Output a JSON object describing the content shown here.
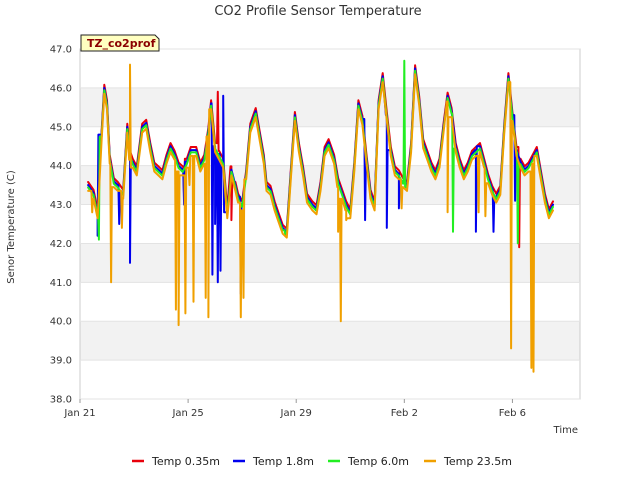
{
  "chart_data": {
    "type": "line",
    "title": "CO2 Profile Sensor Temperature",
    "badge": "TZ_co2prof",
    "xlabel": "Time",
    "ylabel": "Senor Temperature (C)",
    "ylim": [
      38.0,
      47.0
    ],
    "xlim": [
      0,
      18.5
    ],
    "y_ticks": [
      {
        "value": 38.0,
        "label": "38.0"
      },
      {
        "value": 39.0,
        "label": "39.0"
      },
      {
        "value": 40.0,
        "label": "40.0"
      },
      {
        "value": 41.0,
        "label": "41.0"
      },
      {
        "value": 42.0,
        "label": "42.0"
      },
      {
        "value": 43.0,
        "label": "43.0"
      },
      {
        "value": 44.0,
        "label": "44.0"
      },
      {
        "value": 45.0,
        "label": "45.0"
      },
      {
        "value": 46.0,
        "label": "46.0"
      },
      {
        "value": 47.0,
        "label": "47.0"
      }
    ],
    "x_ticks": [
      {
        "value": 0,
        "label": "Jan 21"
      },
      {
        "value": 4,
        "label": "Jan 25"
      },
      {
        "value": 8,
        "label": "Jan 29"
      },
      {
        "value": 12,
        "label": "Feb 2"
      },
      {
        "value": 16,
        "label": "Feb 6"
      }
    ],
    "base_series": {
      "x": [
        0.3,
        0.5,
        0.65,
        0.8,
        0.9,
        1.0,
        1.1,
        1.25,
        1.4,
        1.6,
        1.75,
        1.85,
        1.95,
        2.1,
        2.3,
        2.45,
        2.6,
        2.75,
        2.9,
        3.05,
        3.2,
        3.35,
        3.5,
        3.65,
        3.8,
        3.95,
        4.1,
        4.3,
        4.45,
        4.6,
        4.75,
        4.85,
        5.0,
        5.15,
        5.3,
        5.45,
        5.6,
        5.75,
        5.85,
        6.0,
        6.15,
        6.3,
        6.5,
        6.65,
        6.8,
        6.9,
        7.05,
        7.2,
        7.35,
        7.5,
        7.65,
        7.8,
        7.95,
        8.1,
        8.25,
        8.4,
        8.6,
        8.75,
        8.9,
        9.05,
        9.2,
        9.4,
        9.55,
        9.7,
        9.85,
        10.0,
        10.15,
        10.3,
        10.45,
        10.6,
        10.75,
        10.9,
        11.05,
        11.2,
        11.35,
        11.5,
        11.65,
        11.8,
        11.95,
        12.1,
        12.25,
        12.4,
        12.55,
        12.7,
        12.85,
        13.0,
        13.15,
        13.3,
        13.45,
        13.6,
        13.75,
        13.9,
        14.05,
        14.2,
        14.35,
        14.5,
        14.65,
        14.8,
        14.95,
        15.1,
        15.25,
        15.4,
        15.55,
        15.7,
        15.85,
        16.0,
        16.15,
        16.3,
        16.45,
        16.6,
        16.75,
        16.9,
        17.05,
        17.2,
        17.35,
        17.5
      ],
      "y": [
        43.5,
        43.3,
        42.8,
        44.8,
        46.0,
        45.6,
        44.2,
        43.6,
        43.5,
        43.3,
        45.0,
        44.3,
        44.1,
        43.9,
        45.0,
        45.1,
        44.5,
        44.0,
        43.9,
        43.8,
        44.2,
        44.5,
        44.3,
        44.0,
        43.9,
        44.1,
        44.4,
        44.4,
        44.0,
        44.2,
        44.9,
        45.6,
        44.5,
        44.3,
        44.1,
        42.8,
        43.9,
        43.5,
        43.2,
        43.0,
        43.8,
        45.0,
        45.4,
        44.8,
        44.2,
        43.5,
        43.4,
        43.0,
        42.7,
        42.4,
        42.3,
        43.8,
        45.3,
        44.5,
        43.9,
        43.2,
        43.0,
        42.9,
        43.5,
        44.4,
        44.6,
        44.2,
        43.6,
        43.3,
        43.0,
        42.8,
        44.0,
        45.6,
        45.2,
        44.2,
        43.3,
        43.0,
        45.6,
        46.3,
        45.3,
        44.4,
        43.9,
        43.8,
        43.6,
        43.5,
        44.5,
        46.5,
        45.7,
        44.6,
        44.3,
        44.0,
        43.8,
        44.1,
        45.0,
        45.8,
        45.4,
        44.5,
        44.1,
        43.8,
        44.0,
        44.3,
        44.4,
        44.5,
        44.1,
        43.7,
        43.4,
        43.2,
        43.4,
        45.0,
        46.3,
        45.3,
        44.4,
        44.1,
        43.9,
        44.0,
        44.2,
        44.4,
        43.8,
        43.2,
        42.8,
        43.0
      ]
    },
    "series": [
      {
        "name": "Temp 0.35m",
        "color": "#e8000b",
        "offset": 0.08,
        "dips": [
          {
            "x": 3.85,
            "y": 43.2
          },
          {
            "x": 5.1,
            "y": 45.9
          },
          {
            "x": 5.6,
            "y": 42.6
          },
          {
            "x": 16.25,
            "y": 41.9
          }
        ]
      },
      {
        "name": "Temp 1.8m",
        "color": "#0000ee",
        "offset": 0.0,
        "dips": [
          {
            "x": 0.65,
            "y": 42.2
          },
          {
            "x": 1.45,
            "y": 42.5
          },
          {
            "x": 1.85,
            "y": 41.5
          },
          {
            "x": 3.85,
            "y": 43.0
          },
          {
            "x": 4.9,
            "y": 41.2
          },
          {
            "x": 5.0,
            "y": 42.5
          },
          {
            "x": 5.1,
            "y": 41.0
          },
          {
            "x": 5.2,
            "y": 41.3
          },
          {
            "x": 5.3,
            "y": 45.8
          },
          {
            "x": 5.95,
            "y": 40.7
          },
          {
            "x": 10.55,
            "y": 42.6
          },
          {
            "x": 11.35,
            "y": 42.4
          },
          {
            "x": 11.8,
            "y": 42.9
          },
          {
            "x": 14.65,
            "y": 42.3
          },
          {
            "x": 15.3,
            "y": 42.3
          },
          {
            "x": 16.1,
            "y": 43.1
          }
        ]
      },
      {
        "name": "Temp 6.0m",
        "color": "#22ee22",
        "offset": -0.06,
        "dips": [
          {
            "x": 0.7,
            "y": 42.1
          },
          {
            "x": 7.6,
            "y": 42.2
          },
          {
            "x": 12.0,
            "y": 46.7
          },
          {
            "x": 13.8,
            "y": 42.3
          },
          {
            "x": 16.2,
            "y": 42.0
          }
        ]
      },
      {
        "name": "Temp 23.5m",
        "color": "#f0a000",
        "offset": -0.15,
        "dips": [
          {
            "x": 0.45,
            "y": 42.8
          },
          {
            "x": 1.15,
            "y": 41.0
          },
          {
            "x": 1.55,
            "y": 42.4
          },
          {
            "x": 1.85,
            "y": 46.6
          },
          {
            "x": 3.55,
            "y": 40.3
          },
          {
            "x": 3.65,
            "y": 39.9
          },
          {
            "x": 3.9,
            "y": 40.2
          },
          {
            "x": 4.05,
            "y": 43.5
          },
          {
            "x": 4.2,
            "y": 40.5
          },
          {
            "x": 4.65,
            "y": 40.6
          },
          {
            "x": 4.75,
            "y": 40.1
          },
          {
            "x": 5.95,
            "y": 40.1
          },
          {
            "x": 6.05,
            "y": 40.6
          },
          {
            "x": 9.55,
            "y": 42.3
          },
          {
            "x": 9.65,
            "y": 40.0
          },
          {
            "x": 9.85,
            "y": 42.6
          },
          {
            "x": 11.9,
            "y": 42.9
          },
          {
            "x": 13.6,
            "y": 42.8
          },
          {
            "x": 14.75,
            "y": 42.8
          },
          {
            "x": 15.0,
            "y": 42.7
          },
          {
            "x": 15.95,
            "y": 39.3
          },
          {
            "x": 16.7,
            "y": 38.8
          },
          {
            "x": 16.78,
            "y": 38.7
          }
        ]
      }
    ],
    "grid": "horizontal bands",
    "legend_position": "bottom-center"
  }
}
